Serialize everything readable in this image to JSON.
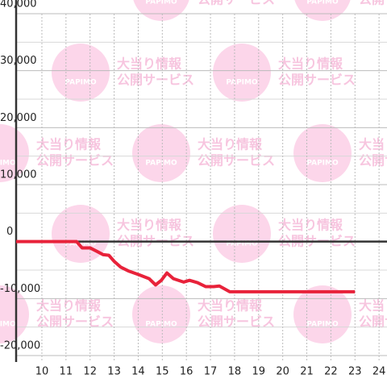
{
  "chart_data": {
    "type": "line",
    "x": [
      8.93,
      11.44,
      11.67,
      12.0,
      12.28,
      12.55,
      12.78,
      13.01,
      13.28,
      13.62,
      14.02,
      14.45,
      14.72,
      14.96,
      15.19,
      15.46,
      15.89,
      16.13,
      16.46,
      16.8,
      17.13,
      17.37,
      17.8,
      18.3,
      23.0
    ],
    "series": [
      {
        "color": "#e8223a",
        "values": [
          0,
          0,
          -1100,
          -1100,
          -1700,
          -2300,
          -2400,
          -3500,
          -4500,
          -5200,
          -5800,
          -6500,
          -7600,
          -6800,
          -5500,
          -6500,
          -7100,
          -6800,
          -7200,
          -7900,
          -7900,
          -7800,
          -8800,
          -8800,
          -8800
        ]
      }
    ],
    "xlim": [
      8.93,
      24.33
    ],
    "ylim": [
      -20000,
      40000
    ],
    "xticks": [
      10,
      11,
      12,
      13,
      14,
      15,
      16,
      17,
      18,
      19,
      20,
      21,
      22,
      23,
      24
    ],
    "yticks": [
      {
        "value": -20000,
        "label": "-20,000"
      },
      {
        "value": -10000,
        "label": "-10,000"
      },
      0,
      {
        "value": 10000,
        "label": "10,000"
      },
      {
        "value": 20000,
        "label": "20,000"
      },
      {
        "value": 30000,
        "label": "30,000"
      },
      {
        "value": 40000,
        "label": "40,000"
      }
    ],
    "minor_yticks": [
      -15000,
      -5000,
      5000,
      15000,
      25000,
      35000
    ],
    "grid": true,
    "watermark": {
      "brand": "PAPIMO",
      "line1": "大当り情報",
      "line2": "公開サービス"
    }
  }
}
